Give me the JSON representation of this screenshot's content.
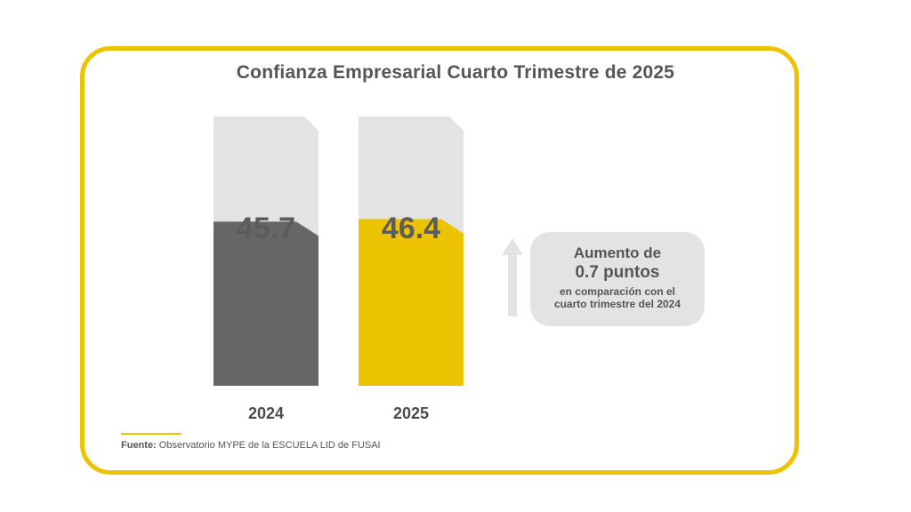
{
  "title": "Confianza Empresarial  Cuarto Trimestre de 2025",
  "colors": {
    "frame": "#ecc300",
    "track": "#e3e3e3",
    "bar_2024": "#666666",
    "bar_2025": "#ecc300",
    "arrow": "#e3e3e3",
    "text": "#555555"
  },
  "chart_data": {
    "type": "bar",
    "categories": [
      "2024",
      "2025"
    ],
    "values": [
      45.7,
      46.4
    ],
    "value_labels": [
      "45.7",
      "46.4"
    ],
    "ylim": [
      0,
      100
    ],
    "xlabel": "",
    "ylabel": ""
  },
  "annotation": {
    "icon": "arrow-up-icon",
    "line1": "Aumento de",
    "line2": "0.7 puntos",
    "line3": "en comparación con el",
    "line4": "cuarto trimestre del 2024"
  },
  "source": {
    "label": "Fuente:",
    "text": " Observatorio MYPE de la ESCUELA LID de FUSAI"
  }
}
